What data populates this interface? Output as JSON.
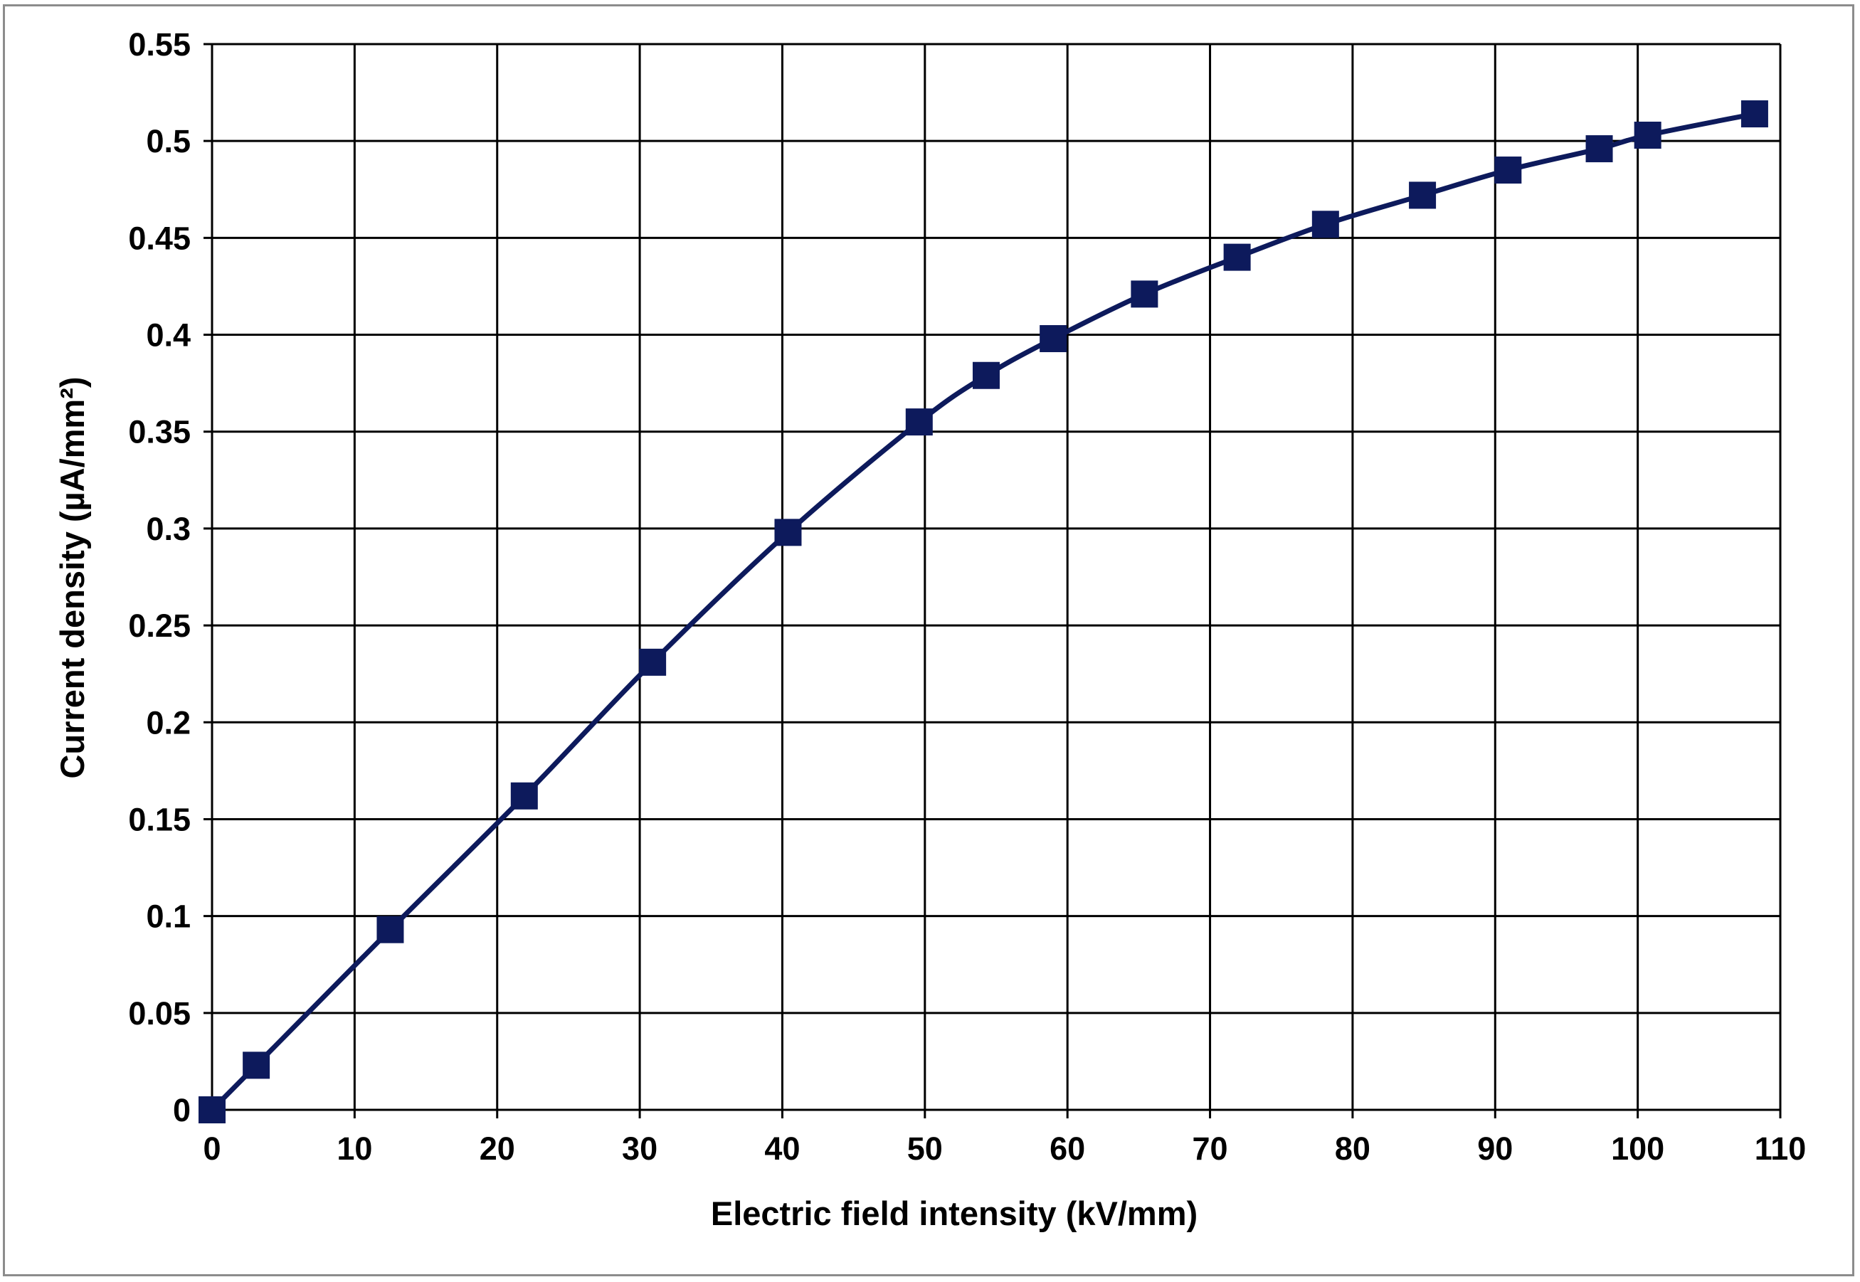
{
  "chart_data": {
    "type": "line",
    "title": "",
    "xlabel": "Electric field intensity (kV/mm)",
    "ylabel": "Current density (µA/mm²)",
    "xlim": [
      0,
      110
    ],
    "ylim": [
      0,
      0.55
    ],
    "xticks": [
      "0",
      "10",
      "20",
      "30",
      "40",
      "50",
      "60",
      "70",
      "80",
      "90",
      "100",
      "110"
    ],
    "yticks": [
      "0",
      "0.05",
      "0.1",
      "0.15",
      "0.2",
      "0.25",
      "0.3",
      "0.35",
      "0.4",
      "0.45",
      "0.5",
      "0.55"
    ],
    "grid": true,
    "legend": "none",
    "marker": "square",
    "color": "#0d1a5c",
    "series": [
      {
        "x": [
          0,
          3.1,
          12.5,
          21.9,
          30.9,
          40.4,
          49.6,
          54.3,
          59.0,
          65.4,
          71.9,
          78.1,
          84.9,
          90.9,
          97.3,
          100.7,
          108.2
        ],
        "y": [
          0.0,
          0.023,
          0.093,
          0.162,
          0.231,
          0.298,
          0.355,
          0.379,
          0.398,
          0.421,
          0.44,
          0.457,
          0.472,
          0.485,
          0.496,
          0.503,
          0.514
        ]
      }
    ]
  }
}
